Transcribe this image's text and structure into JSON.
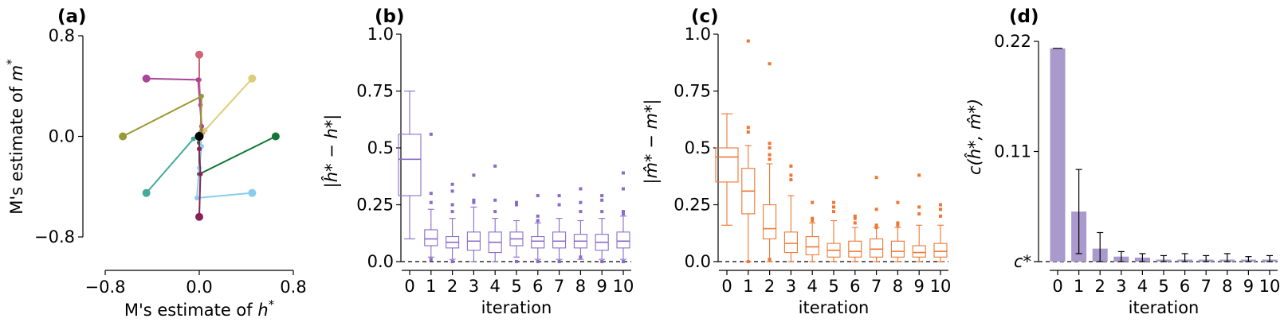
{
  "chart_data": [
    {
      "panel": "(a)",
      "type": "scatter",
      "xlabel": "M's estimate of h*",
      "ylabel": "M's estimate of m*",
      "xlim": [
        -0.8,
        0.8
      ],
      "ylim": [
        -0.8,
        0.8
      ],
      "xticks": [
        "−0.8",
        "0.0",
        "0.8"
      ],
      "yticks": [
        "−0.8",
        "0.0",
        "0.8"
      ],
      "trajectories": [
        {
          "color": "#cc6677",
          "points": [
            [
              0.0,
              0.65
            ],
            [
              0.0,
              0.45
            ],
            [
              0.01,
              0.25
            ],
            [
              0.02,
              0.08
            ],
            [
              0.03,
              0.03
            ]
          ]
        },
        {
          "color": "#aa4499",
          "points": [
            [
              -0.45,
              0.46
            ],
            [
              -0.01,
              0.45
            ],
            [
              0.02,
              0.08
            ],
            [
              0.02,
              0.02
            ]
          ]
        },
        {
          "color": "#ddcc77",
          "points": [
            [
              0.45,
              0.46
            ],
            [
              0.05,
              0.05
            ],
            [
              0.02,
              0.01
            ]
          ]
        },
        {
          "color": "#999933",
          "points": [
            [
              -0.65,
              0.0
            ],
            [
              0.02,
              0.32
            ],
            [
              0.01,
              0.03
            ]
          ]
        },
        {
          "color": "#117733",
          "points": [
            [
              0.65,
              0.0
            ],
            [
              0.0,
              -0.3
            ],
            [
              0.0,
              -0.05
            ],
            [
              0.0,
              0.0
            ]
          ]
        },
        {
          "color": "#44aa99",
          "points": [
            [
              -0.45,
              -0.45
            ],
            [
              -0.05,
              -0.02
            ],
            [
              0.0,
              0.0
            ]
          ]
        },
        {
          "color": "#88ccee",
          "points": [
            [
              0.45,
              -0.45
            ],
            [
              -0.02,
              -0.49
            ],
            [
              0.0,
              -0.25
            ],
            [
              0.02,
              -0.08
            ],
            [
              0.0,
              0.0
            ]
          ]
        },
        {
          "color": "#882255",
          "points": [
            [
              0.0,
              -0.64
            ],
            [
              0.01,
              -0.3
            ],
            [
              0.0,
              -0.1
            ],
            [
              0.0,
              0.0
            ]
          ]
        }
      ],
      "target": [
        0.0,
        0.0
      ]
    },
    {
      "panel": "(b)",
      "type": "box",
      "color": "#8b6bc8",
      "ylabel": "|ĥ* − h*|",
      "xlabel": "iteration",
      "ylim": [
        0,
        1
      ],
      "yticks": [
        "0.0",
        "0.25",
        "0.5",
        "0.75",
        "1.0"
      ],
      "categories": [
        "0",
        "1",
        "2",
        "3",
        "4",
        "5",
        "6",
        "7",
        "8",
        "9",
        "10"
      ],
      "boxes": [
        {
          "q1": 0.29,
          "med": 0.45,
          "q3": 0.56,
          "wlo": 0.1,
          "whi": 0.75,
          "out": []
        },
        {
          "q1": 0.07,
          "med": 0.1,
          "q3": 0.14,
          "wlo": 0.02,
          "whi": 0.23,
          "out": [
            0.56,
            0.3,
            0.26,
            0.01
          ]
        },
        {
          "q1": 0.06,
          "med": 0.085,
          "q3": 0.11,
          "wlo": 0.01,
          "whi": 0.19,
          "out": [
            0.34,
            0.31,
            0.25,
            0.22,
            0.0
          ]
        },
        {
          "q1": 0.05,
          "med": 0.09,
          "q3": 0.13,
          "wlo": 0.0,
          "whi": 0.24,
          "out": [
            0.38,
            0.27,
            0.26
          ]
        },
        {
          "q1": 0.04,
          "med": 0.085,
          "q3": 0.13,
          "wlo": 0.0,
          "whi": 0.19,
          "out": [
            0.42,
            0.27,
            0.22
          ]
        },
        {
          "q1": 0.07,
          "med": 0.1,
          "q3": 0.13,
          "wlo": 0.02,
          "whi": 0.18,
          "out": [
            0.26,
            0.25,
            0.0
          ]
        },
        {
          "q1": 0.06,
          "med": 0.09,
          "q3": 0.11,
          "wlo": 0.01,
          "whi": 0.17,
          "out": [
            0.29,
            0.2,
            0.18,
            0.0
          ]
        },
        {
          "q1": 0.06,
          "med": 0.09,
          "q3": 0.13,
          "wlo": 0.01,
          "whi": 0.19,
          "out": [
            0.29,
            0.25,
            0.0
          ]
        },
        {
          "q1": 0.06,
          "med": 0.09,
          "q3": 0.12,
          "wlo": 0.01,
          "whi": 0.18,
          "out": [
            0.32,
            0.26,
            0.22,
            0.02
          ]
        },
        {
          "q1": 0.05,
          "med": 0.085,
          "q3": 0.12,
          "wlo": 0.01,
          "whi": 0.19,
          "out": [
            0.29,
            0.27,
            0.22,
            0.0
          ]
        },
        {
          "q1": 0.06,
          "med": 0.09,
          "q3": 0.13,
          "wlo": 0.01,
          "whi": 0.2,
          "out": [
            0.39,
            0.32,
            0.22,
            0.21,
            0.0
          ]
        }
      ]
    },
    {
      "panel": "(c)",
      "type": "box",
      "color": "#ee7733",
      "ylabel": "|m̂* − m*|",
      "xlabel": "iteration",
      "ylim": [
        0,
        1
      ],
      "yticks": [
        "0.0",
        "0.25",
        "0.5",
        "0.75",
        "1.0"
      ],
      "categories": [
        "0",
        "1",
        "2",
        "3",
        "4",
        "5",
        "6",
        "7",
        "8",
        "9",
        "10"
      ],
      "boxes": [
        {
          "q1": 0.35,
          "med": 0.46,
          "q3": 0.5,
          "wlo": 0.16,
          "whi": 0.65,
          "out": []
        },
        {
          "q1": 0.21,
          "med": 0.31,
          "q3": 0.41,
          "wlo": 0.0,
          "whi": 0.51,
          "out": [
            0.97,
            0.59,
            0.57,
            0.0
          ]
        },
        {
          "q1": 0.1,
          "med": 0.145,
          "q3": 0.25,
          "wlo": 0.0,
          "whi": 0.43,
          "out": [
            0.87,
            0.52,
            0.5,
            0.47,
            0.45,
            0.01
          ]
        },
        {
          "q1": 0.04,
          "med": 0.08,
          "q3": 0.13,
          "wlo": 0.0,
          "whi": 0.29,
          "out": [
            0.42,
            0.38,
            0.36
          ]
        },
        {
          "q1": 0.03,
          "med": 0.065,
          "q3": 0.11,
          "wlo": 0.0,
          "whi": 0.17,
          "out": [
            0.26,
            0.19,
            0.18
          ]
        },
        {
          "q1": 0.02,
          "med": 0.05,
          "q3": 0.08,
          "wlo": 0.0,
          "whi": 0.18,
          "out": [
            0.26,
            0.24,
            0.22
          ]
        },
        {
          "q1": 0.02,
          "med": 0.045,
          "q3": 0.09,
          "wlo": 0.0,
          "whi": 0.15,
          "out": [
            0.2,
            0.19,
            0.17
          ]
        },
        {
          "q1": 0.02,
          "med": 0.055,
          "q3": 0.1,
          "wlo": 0.0,
          "whi": 0.15,
          "out": [
            0.37,
            0.23,
            0.16,
            0.15
          ]
        },
        {
          "q1": 0.02,
          "med": 0.045,
          "q3": 0.09,
          "wlo": 0.0,
          "whi": 0.15,
          "out": [
            0.26,
            0.17,
            0.16
          ]
        },
        {
          "q1": 0.02,
          "med": 0.04,
          "q3": 0.07,
          "wlo": 0.0,
          "whi": 0.16,
          "out": [
            0.38,
            0.24,
            0.21
          ]
        },
        {
          "q1": 0.02,
          "med": 0.045,
          "q3": 0.08,
          "wlo": 0.0,
          "whi": 0.16,
          "out": [
            0.25,
            0.23,
            0.2
          ]
        }
      ]
    },
    {
      "panel": "(d)",
      "type": "bar",
      "color": "#aa99cc",
      "ylabel": "c(ĥ*, m̂*)",
      "xlabel": "iteration",
      "ylim": [
        0,
        0.22
      ],
      "yticks": [
        "c*",
        "0.11",
        "0.22"
      ],
      "categories": [
        "0",
        "1",
        "2",
        "3",
        "4",
        "5",
        "6",
        "7",
        "8",
        "9",
        "10"
      ],
      "values": [
        0.213,
        0.05,
        0.013,
        0.005,
        0.004,
        0.002,
        0.002,
        0.002,
        0.002,
        0.002,
        0.002
      ],
      "errors": [
        0.0,
        0.042,
        0.016,
        0.005,
        0.004,
        0.004,
        0.006,
        0.004,
        0.006,
        0.003,
        0.004
      ]
    }
  ]
}
